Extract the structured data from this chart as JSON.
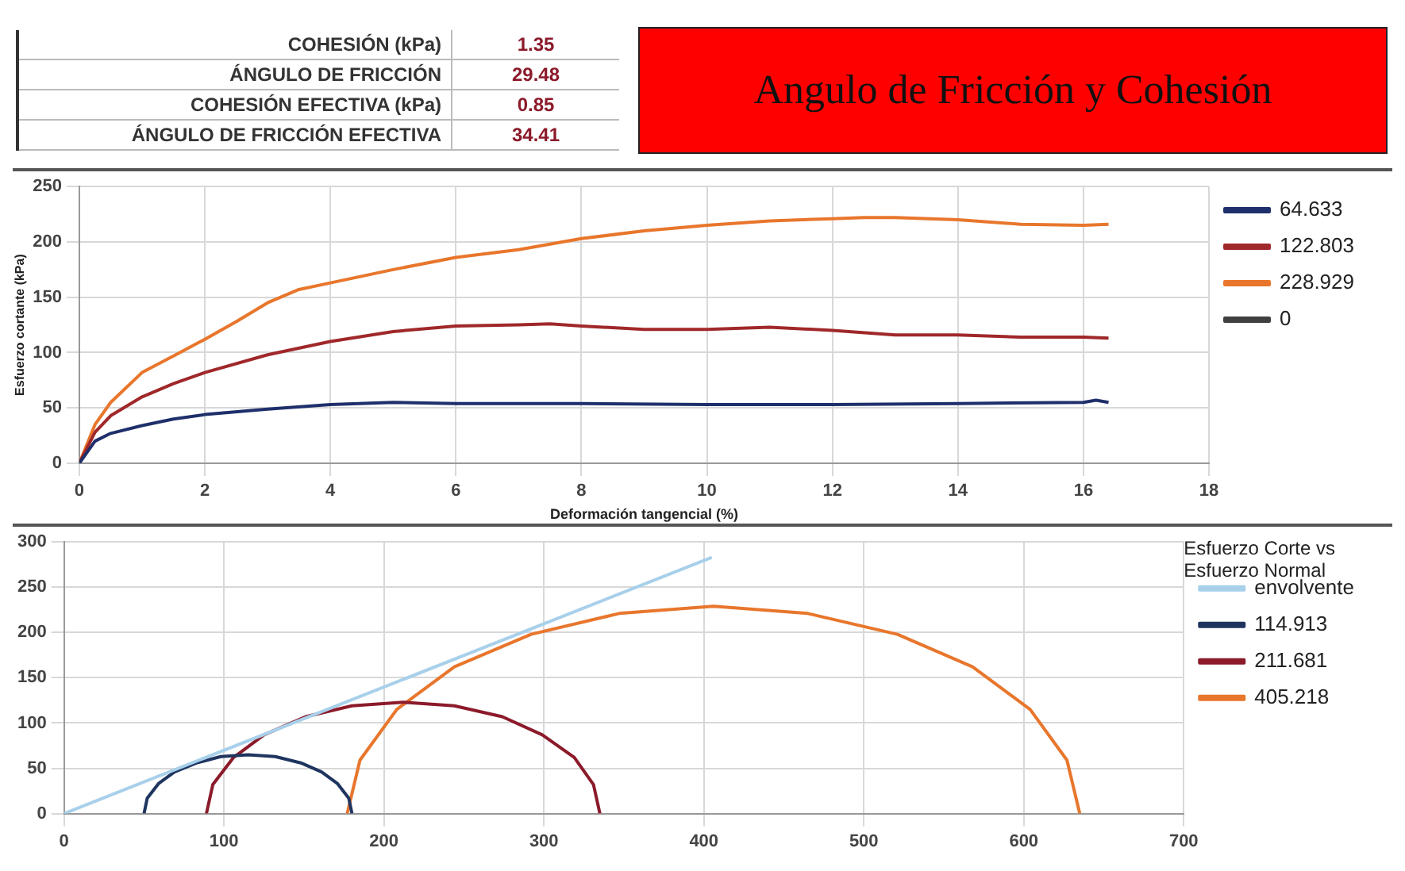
{
  "chart_data": [
    {
      "type": "line",
      "title": "Angulo de Fricción y Cohesión",
      "annotations": [
        "COHESIÓN (kPa)",
        "1.35",
        "ÁNGULO DE FRICCIÓN",
        "29.48",
        "COHESIÓN EFECTIVA (kPa)",
        "0.85",
        "ÁNGULO DE FRICCIÓN EFECTIVA",
        "34.41"
      ],
      "xlabel": "Deformación tangencial (%)",
      "ylabel": "Esfuerzo cortante (kPa)",
      "xlim": [
        0,
        18
      ],
      "xticks": [
        0,
        2,
        4,
        6,
        8,
        10,
        12,
        14,
        16,
        18
      ],
      "ylim": [
        0,
        250
      ],
      "yticks": [
        0,
        50,
        100,
        150,
        200,
        250
      ],
      "grid": true,
      "legend": "right",
      "marker": "none",
      "series": [
        {
          "name": "64.633",
          "color": "#1f2f6b",
          "x": [
            0,
            0.25,
            0.5,
            1,
            1.5,
            2,
            3,
            4,
            5,
            6,
            8,
            10,
            12,
            14,
            16,
            16.2,
            16.4
          ],
          "values": [
            0,
            20,
            27,
            34,
            40,
            44,
            49,
            53,
            55,
            54,
            54,
            53,
            53,
            54,
            55,
            57,
            55
          ]
        },
        {
          "name": "122.803",
          "color": "#a0282a",
          "x": [
            0,
            0.25,
            0.5,
            1,
            1.5,
            2,
            3,
            4,
            5,
            6,
            7,
            7.5,
            8,
            9,
            10,
            11,
            12,
            13,
            14,
            15,
            16,
            16.4
          ],
          "values": [
            0,
            28,
            43,
            60,
            72,
            82,
            98,
            110,
            119,
            124,
            125,
            126,
            124,
            121,
            121,
            123,
            120,
            116,
            116,
            114,
            114,
            113
          ]
        },
        {
          "name": "228.929",
          "color": "#e8762c",
          "x": [
            0,
            0.25,
            0.5,
            1,
            1.5,
            2,
            2.5,
            3,
            3.5,
            4,
            5,
            6,
            7,
            8,
            9,
            10,
            11,
            12,
            12.5,
            13,
            14,
            15,
            16,
            16.4
          ],
          "values": [
            0,
            35,
            55,
            82,
            97,
            112,
            128,
            145,
            157,
            163,
            175,
            186,
            193,
            203,
            210,
            215,
            219,
            221,
            222,
            222,
            220,
            216,
            215,
            216
          ]
        },
        {
          "name": "0",
          "color": "#404040"
        }
      ]
    },
    {
      "type": "line",
      "legend_title": "Esfuerzo Corte vs Esfuerzo Normal",
      "xlim": [
        0,
        700
      ],
      "xticks": [
        0,
        100,
        200,
        300,
        400,
        500,
        600,
        700
      ],
      "ylim": [
        0,
        300
      ],
      "yticks": [
        0,
        50,
        100,
        150,
        200,
        250,
        300
      ],
      "grid": true,
      "legend": "right",
      "marker": "none",
      "series": [
        {
          "name": "envolvente",
          "color": "#a8d0ea",
          "x": [
            0,
            405
          ],
          "values": [
            0,
            283
          ]
        },
        {
          "name": "114.913",
          "color": "#1f3560",
          "x": [
            180,
            178,
            171,
            161,
            148,
            132,
            115,
            98,
            83,
            69,
            59,
            52,
            50
          ],
          "values": [
            0,
            17,
            33,
            46,
            56,
            63,
            65,
            63,
            56,
            46,
            33,
            17,
            0
          ]
        },
        {
          "name": "211.681",
          "color": "#8b1a2a",
          "x": [
            335,
            331,
            319,
            299,
            274,
            244,
            212,
            180,
            151,
            125,
            106,
            93,
            89
          ],
          "values": [
            0,
            32,
            62,
            87,
            107,
            119,
            123,
            119,
            107,
            87,
            62,
            32,
            0
          ]
        },
        {
          "name": "405.218",
          "color": "#e8762c",
          "x": [
            635,
            627,
            604,
            568,
            521,
            465,
            406,
            347,
            292,
            244,
            208,
            185,
            177
          ],
          "values": [
            0,
            59,
            115,
            162,
            198,
            221,
            229,
            221,
            198,
            162,
            115,
            59,
            0
          ]
        }
      ]
    }
  ]
}
